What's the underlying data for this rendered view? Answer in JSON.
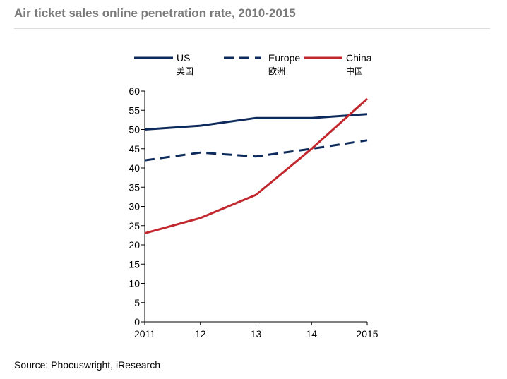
{
  "title": "Air ticket sales online penetration rate, 2010-2015",
  "source": "Source: Phocuswright, iResearch",
  "chart_data": {
    "type": "line",
    "title": "Air ticket sales online penetration rate, 2010-2015",
    "xlabel": "",
    "ylabel": "",
    "categories": [
      "2011",
      "12",
      "13",
      "14",
      "2015"
    ],
    "x": [
      2011,
      2012,
      2013,
      2014,
      2015
    ],
    "ylim": [
      0,
      60
    ],
    "yticks": [
      0,
      5,
      10,
      15,
      20,
      25,
      30,
      35,
      40,
      45,
      50,
      55,
      60
    ],
    "grid": false,
    "legend_position": "top",
    "series": [
      {
        "name": "US",
        "name_zh": "美国",
        "color": "#0d2a5c",
        "style": "solid",
        "values": [
          50,
          51,
          53,
          53,
          54
        ]
      },
      {
        "name": "Europe",
        "name_zh": "欧洲",
        "color": "#0d2a5c",
        "style": "dashed",
        "values": [
          42,
          44,
          43,
          45,
          47.2
        ]
      },
      {
        "name": "China",
        "name_zh": "中国",
        "color": "#c1272d",
        "style": "solid",
        "values": [
          23,
          27,
          33,
          45,
          58
        ]
      }
    ]
  }
}
